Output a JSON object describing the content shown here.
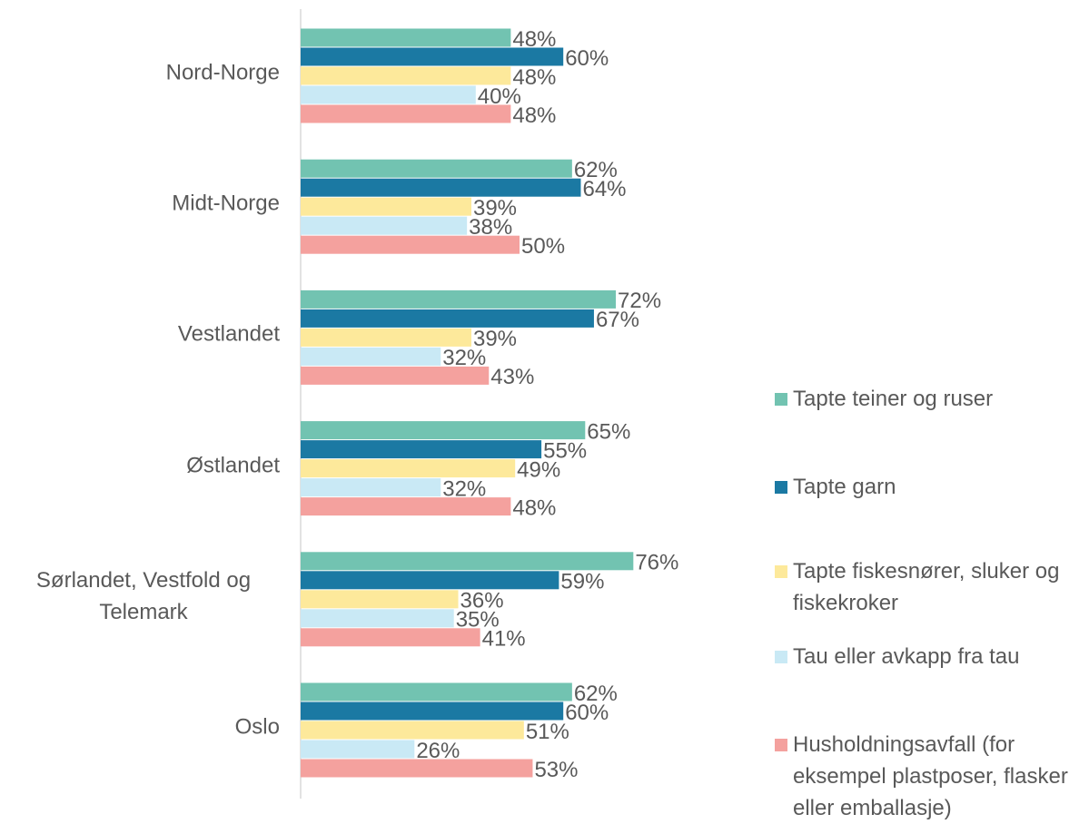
{
  "chart_data": {
    "type": "bar",
    "orientation": "horizontal",
    "categories": [
      "Nord-Norge",
      "Midt-Norge",
      "Vestlandet",
      "Østlandet",
      "Sørlandet, Vestfold og Telemark",
      "Oslo"
    ],
    "xlim": [
      0,
      100
    ],
    "series": [
      {
        "name": "Tapte teiner og ruser",
        "color": "#72c3b1",
        "values": [
          48,
          62,
          72,
          65,
          76,
          62
        ],
        "value_labels": [
          "48%",
          "62%",
          "72%",
          "65%",
          "76%",
          "62%"
        ]
      },
      {
        "name": "Tapte garn",
        "color": "#1b79a3",
        "values": [
          60,
          64,
          67,
          55,
          59,
          60
        ],
        "value_labels": [
          "60%",
          "64%",
          "67%",
          "55%",
          "59%",
          "60%"
        ]
      },
      {
        "name": "Tapte fiskesnører, sluker og fiskekroker",
        "color": "#fde99b",
        "values": [
          48,
          39,
          39,
          49,
          36,
          51
        ],
        "value_labels": [
          "48%",
          "39%",
          "39%",
          "49%",
          "36%",
          "51%"
        ]
      },
      {
        "name": "Tau eller avkapp fra tau",
        "color": "#c9e9f5",
        "values": [
          40,
          38,
          32,
          32,
          35,
          26
        ],
        "value_labels": [
          "40%",
          "38%",
          "32%",
          "32%",
          "35%",
          "26%"
        ]
      },
      {
        "name": "Husholdningsavfall (for eksempel plastposer, flasker eller emballasje)",
        "color": "#f4a19e",
        "values": [
          48,
          50,
          43,
          48,
          41,
          53
        ],
        "value_labels": [
          "48%",
          "50%",
          "43%",
          "48%",
          "41%",
          "53%"
        ]
      }
    ]
  }
}
